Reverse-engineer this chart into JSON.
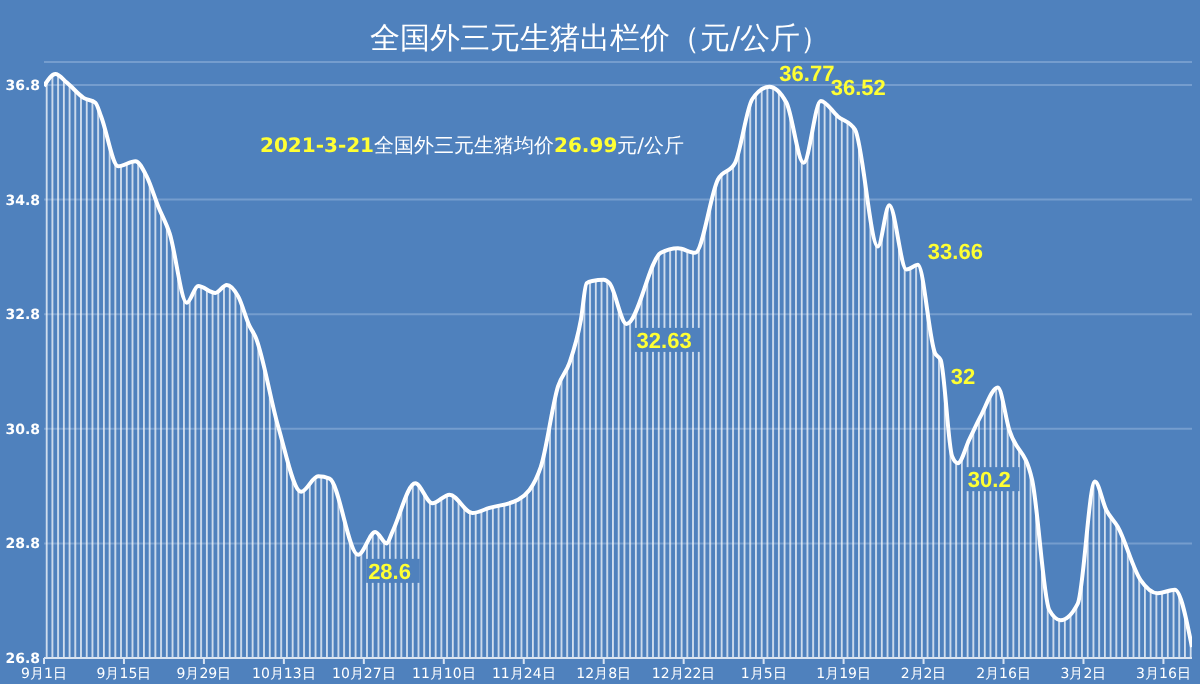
{
  "chart_data": {
    "type": "area",
    "title": "全国外三元生猪出栏价（元/公斤）",
    "annotations": [
      "2021-3-21全国外三元生猪均价26.99元/公斤"
    ],
    "x": [
      "2020-09-01",
      "2020-09-03",
      "2020-09-05",
      "2020-09-08",
      "2020-09-10",
      "2020-09-11",
      "2020-09-14",
      "2020-09-17",
      "2020-09-19",
      "2020-09-21",
      "2020-09-23",
      "2020-09-26",
      "2020-09-28",
      "2020-10-01",
      "2020-10-03",
      "2020-10-05",
      "2020-10-07",
      "2020-10-08",
      "2020-10-12",
      "2020-10-16",
      "2020-10-19",
      "2020-10-21",
      "2020-10-26",
      "2020-10-29",
      "2020-10-31",
      "2020-11-01",
      "2020-11-05",
      "2020-11-08",
      "2020-11-11",
      "2020-11-15",
      "2020-11-18",
      "2020-11-23",
      "2020-11-27",
      "2020-11-30",
      "2020-12-02",
      "2020-12-04",
      "2020-12-05",
      "2020-12-06",
      "2020-12-08",
      "2020-12-09",
      "2020-12-12",
      "2020-12-18",
      "2020-12-21",
      "2020-12-24",
      "2020-12-28",
      "2020-12-31",
      "2021-01-03",
      "2021-01-06",
      "2021-01-09",
      "2021-01-12",
      "2021-01-15",
      "2021-01-18",
      "2021-01-21",
      "2021-01-25",
      "2021-01-27",
      "2021-01-30",
      "2021-02-01",
      "2021-02-04",
      "2021-02-05",
      "2021-02-07",
      "2021-02-08",
      "2021-02-10",
      "2021-02-12",
      "2021-02-15",
      "2021-02-17",
      "2021-02-21",
      "2021-02-24",
      "2021-02-26",
      "2021-03-01",
      "2021-03-04",
      "2021-03-06",
      "2021-03-08",
      "2021-03-12",
      "2021-03-15",
      "2021-03-18",
      "2021-03-21"
    ],
    "series": [
      {
        "color": "#ffffff",
        "values": [
          36.78,
          36.99,
          36.84,
          36.57,
          36.49,
          36.25,
          35.38,
          35.47,
          35.2,
          34.68,
          34.21,
          33.0,
          33.29,
          33.17,
          33.31,
          33.11,
          32.59,
          32.41,
          30.84,
          29.7,
          29.97,
          29.93,
          28.6,
          29.0,
          28.8,
          29.0,
          29.85,
          29.5,
          29.65,
          29.33,
          29.42,
          29.56,
          30.14,
          31.54,
          31.95,
          32.7,
          33.34,
          33.38,
          33.4,
          33.34,
          32.63,
          33.87,
          33.95,
          33.87,
          35.15,
          35.44,
          36.55,
          36.77,
          36.49,
          35.44,
          36.52,
          36.25,
          36.02,
          33.98,
          34.7,
          33.58,
          33.66,
          32.12,
          32,
          30.32,
          30.2,
          30.61,
          31.02,
          31.52,
          30.78,
          29.91,
          27.64,
          27.46,
          27.75,
          29.88,
          29.38,
          29.09,
          28.16,
          27.93,
          27.99,
          26.99
        ],
        "value_labels": [
          null,
          null,
          null,
          null,
          null,
          null,
          null,
          null,
          null,
          null,
          null,
          null,
          null,
          null,
          null,
          null,
          null,
          null,
          null,
          null,
          null,
          null,
          "28.6",
          null,
          null,
          null,
          null,
          null,
          null,
          null,
          null,
          null,
          null,
          null,
          null,
          null,
          null,
          null,
          null,
          null,
          "32.63",
          null,
          null,
          null,
          null,
          null,
          null,
          "36.77",
          null,
          null,
          "36.52",
          null,
          null,
          null,
          null,
          null,
          "33.66",
          null,
          "32",
          null,
          "30.2",
          null,
          null,
          null,
          null,
          null,
          null,
          null,
          null,
          null,
          null,
          null,
          null,
          null,
          null,
          null
        ]
      }
    ],
    "xlim": [
      "2020-09-01",
      "2021-03-21"
    ],
    "xticks": [
      {
        "value": "2020-09-01",
        "label": "9月1日"
      },
      {
        "value": "2020-09-15",
        "label": "9月15日"
      },
      {
        "value": "2020-09-29",
        "label": "9月29日"
      },
      {
        "value": "2020-10-13",
        "label": "10月13日"
      },
      {
        "value": "2020-10-27",
        "label": "10月27日"
      },
      {
        "value": "2020-11-10",
        "label": "11月10日"
      },
      {
        "value": "2020-11-24",
        "label": "11月24日"
      },
      {
        "value": "2020-12-08",
        "label": "12月8日"
      },
      {
        "value": "2020-12-22",
        "label": "12月22日"
      },
      {
        "value": "2021-01-05",
        "label": "1月5日"
      },
      {
        "value": "2021-01-19",
        "label": "1月19日"
      },
      {
        "value": "2021-02-02",
        "label": "2月2日"
      },
      {
        "value": "2021-02-16",
        "label": "2月16日"
      },
      {
        "value": "2021-03-02",
        "label": "3月2日"
      },
      {
        "value": "2021-03-16",
        "label": "3月16日"
      }
    ],
    "ylim": [
      26.8,
      37.2
    ],
    "yticks": [
      26.8,
      28.8,
      30.8,
      32.8,
      34.8,
      36.8
    ],
    "grid": "y",
    "legend": false
  }
}
